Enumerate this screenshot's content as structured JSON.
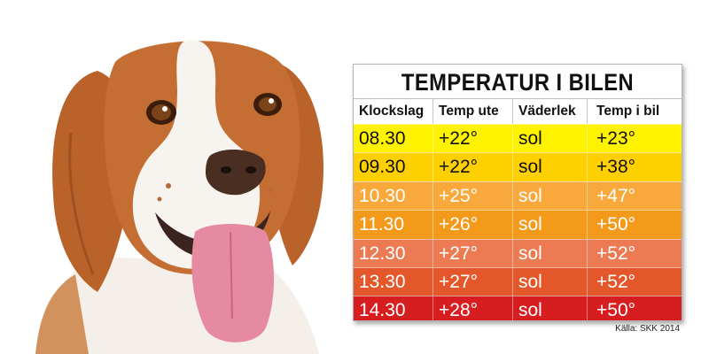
{
  "table": {
    "title": "TEMPERATUR I BILEN",
    "headers": [
      "Klockslag",
      "Temp ute",
      "Väderlek",
      "Temp i bil"
    ],
    "rows": [
      {
        "cells": [
          "08.30",
          "+22°",
          "sol",
          "+23°"
        ],
        "bg": "#fef200",
        "fg": "#111111"
      },
      {
        "cells": [
          "09.30",
          "+22°",
          "sol",
          "+38°"
        ],
        "bg": "#ffd000",
        "fg": "#111111"
      },
      {
        "cells": [
          "10.30",
          "+25°",
          "sol",
          "+47°"
        ],
        "bg": "#f9a93b",
        "fg": "#ffffff"
      },
      {
        "cells": [
          "11.30",
          "+26°",
          "sol",
          "+50°"
        ],
        "bg": "#f39a1b",
        "fg": "#ffffff"
      },
      {
        "cells": [
          "12.30",
          "+27°",
          "sol",
          "+52°"
        ],
        "bg": "#ec7a52",
        "fg": "#ffffff"
      },
      {
        "cells": [
          "13.30",
          "+27°",
          "sol",
          "+52°"
        ],
        "bg": "#e4572b",
        "fg": "#ffffff"
      },
      {
        "cells": [
          "14.30",
          "+28°",
          "sol",
          "+50°"
        ],
        "bg": "#d61d20",
        "fg": "#ffffff"
      }
    ]
  },
  "source": "Källa: SKK 2014"
}
